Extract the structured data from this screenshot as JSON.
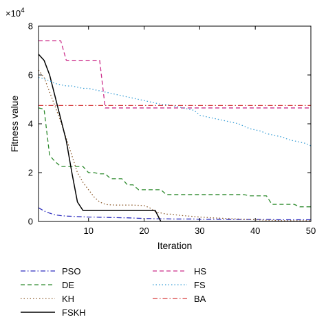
{
  "chart_data": {
    "type": "line",
    "xlabel": "Iteration",
    "ylabel": "Fitness value",
    "multiplier_base": "×10",
    "multiplier_exp": "4",
    "xlim": [
      1,
      50
    ],
    "ylim": [
      0,
      80000
    ],
    "x_ticks": [
      10,
      20,
      30,
      40,
      50
    ],
    "y_ticks": [
      0,
      20000,
      40000,
      60000,
      80000
    ],
    "y_tick_labels": [
      "0",
      "2",
      "4",
      "6",
      "8"
    ],
    "grid": false,
    "legend_position": "below",
    "series": [
      {
        "name": "PSO",
        "color": "#2e2ebf",
        "dash": "dashdot",
        "x": [
          1,
          2,
          3,
          4,
          5,
          6,
          7,
          8,
          9,
          10,
          11,
          12,
          13,
          14,
          15,
          16,
          17,
          18,
          19,
          20,
          21,
          22,
          23,
          24,
          25,
          26,
          27,
          28,
          29,
          30,
          31,
          32,
          33,
          34,
          35,
          36,
          37,
          38,
          39,
          40,
          41,
          42,
          43,
          44,
          45,
          46,
          47,
          48,
          49,
          50
        ],
        "y": [
          5600,
          4300,
          3400,
          2700,
          2400,
          2200,
          2100,
          2000,
          1900,
          1800,
          1800,
          1700,
          1700,
          1600,
          1600,
          1500,
          1500,
          1400,
          1300,
          1200,
          1200,
          1100,
          1100,
          1100,
          1000,
          1000,
          1000,
          1000,
          1000,
          900,
          900,
          900,
          900,
          900,
          800,
          800,
          800,
          800,
          800,
          800,
          800,
          800,
          800,
          700,
          700,
          700,
          700,
          700,
          700,
          700
        ]
      },
      {
        "name": "DE",
        "color": "#2e8b2e",
        "dash": "dashed",
        "x": [
          1,
          2,
          3,
          4,
          5,
          6,
          7,
          8,
          9,
          10,
          11,
          12,
          13,
          14,
          15,
          16,
          17,
          18,
          19,
          20,
          21,
          22,
          23,
          24,
          25,
          26,
          27,
          28,
          29,
          30,
          31,
          32,
          33,
          34,
          35,
          36,
          37,
          38,
          39,
          40,
          41,
          42,
          43,
          44,
          45,
          46,
          47,
          48,
          49,
          50
        ],
        "y": [
          46500,
          46000,
          27000,
          24500,
          22500,
          22500,
          22500,
          22500,
          22500,
          20000,
          20000,
          19500,
          19500,
          17500,
          17500,
          17500,
          15000,
          15000,
          13000,
          13000,
          13000,
          13000,
          13000,
          11000,
          11000,
          11000,
          11000,
          11000,
          11000,
          11000,
          11000,
          11000,
          11000,
          11000,
          11000,
          11000,
          11000,
          11000,
          10500,
          10500,
          10500,
          10500,
          7000,
          7000,
          7000,
          7000,
          7000,
          6000,
          6000,
          6000
        ]
      },
      {
        "name": "KH",
        "color": "#8b5a2b",
        "dash": "dotted",
        "x": [
          1,
          2,
          3,
          4,
          5,
          6,
          7,
          8,
          9,
          10,
          11,
          12,
          13,
          14,
          15,
          16,
          17,
          18,
          19,
          20,
          21,
          22,
          23,
          24,
          25,
          26,
          27,
          28,
          29,
          30,
          31,
          32,
          33,
          34,
          35,
          36,
          37,
          38,
          39,
          40,
          41,
          42,
          43,
          44,
          45,
          46,
          47,
          48,
          49,
          50
        ],
        "y": [
          62000,
          59000,
          53000,
          47000,
          41000,
          34000,
          27000,
          20000,
          16000,
          13000,
          10000,
          8000,
          7000,
          6800,
          6700,
          6700,
          6700,
          6700,
          6600,
          6500,
          5600,
          4000,
          3500,
          3000,
          3000,
          2600,
          2400,
          2200,
          2000,
          1800,
          1700,
          1500,
          1400,
          1300,
          1200,
          1100,
          1000,
          900,
          800,
          700,
          600,
          500,
          500,
          400,
          300,
          300,
          300,
          300,
          300,
          300
        ]
      },
      {
        "name": "FSKH",
        "color": "#000000",
        "dash": "solid",
        "x": [
          1,
          2,
          3,
          4,
          5,
          6,
          7,
          8,
          9,
          10,
          11,
          12,
          13,
          14,
          15,
          16,
          17,
          18,
          19,
          20,
          21,
          22,
          23,
          24,
          25,
          26,
          27,
          28,
          29,
          30,
          31,
          32,
          33,
          34,
          35,
          36,
          37,
          38,
          39,
          40,
          41,
          42,
          43,
          44,
          45,
          46,
          47,
          48,
          49,
          50
        ],
        "y": [
          68500,
          66000,
          60000,
          51000,
          42000,
          33000,
          20000,
          8000,
          4500,
          4500,
          4500,
          4500,
          4500,
          4500,
          4500,
          4500,
          4500,
          4500,
          4500,
          4500,
          4500,
          4500,
          0,
          0,
          0,
          0,
          0,
          0,
          0,
          0,
          0,
          0,
          0,
          0,
          0,
          0,
          0,
          0,
          0,
          0,
          0,
          0,
          0,
          0,
          0,
          0,
          0,
          0,
          0,
          0
        ]
      },
      {
        "name": "HS",
        "color": "#cc2e8b",
        "dash": "dashed",
        "x": [
          1,
          2,
          3,
          4,
          5,
          6,
          7,
          8,
          9,
          10,
          11,
          12,
          13,
          14,
          15,
          16,
          17,
          18,
          19,
          20,
          21,
          22,
          23,
          24,
          25,
          26,
          27,
          28,
          29,
          30,
          31,
          32,
          33,
          34,
          35,
          36,
          37,
          38,
          39,
          40,
          41,
          42,
          43,
          44,
          45,
          46,
          47,
          48,
          49,
          50
        ],
        "y": [
          74000,
          74000,
          74000,
          74000,
          74000,
          66000,
          66000,
          66000,
          66000,
          66000,
          66000,
          66000,
          46500,
          46500,
          46500,
          46500,
          46500,
          46500,
          46500,
          46500,
          46500,
          46500,
          46500,
          46500,
          46500,
          46500,
          46500,
          46500,
          46500,
          46500,
          46500,
          46500,
          46500,
          46500,
          46500,
          46500,
          46500,
          46500,
          46500,
          46500,
          46500,
          46500,
          46500,
          46500,
          46500,
          46500,
          46500,
          46500,
          46500,
          46500
        ]
      },
      {
        "name": "FS",
        "color": "#3a9fd6",
        "dash": "dotted",
        "x": [
          1,
          2,
          3,
          4,
          5,
          6,
          7,
          8,
          9,
          10,
          11,
          12,
          13,
          14,
          15,
          16,
          17,
          18,
          19,
          20,
          21,
          22,
          23,
          24,
          25,
          26,
          27,
          28,
          29,
          30,
          31,
          32,
          33,
          34,
          35,
          36,
          37,
          38,
          39,
          40,
          41,
          42,
          43,
          44,
          45,
          46,
          47,
          48,
          49,
          50
        ],
        "y": [
          59000,
          58500,
          57500,
          56500,
          56000,
          55500,
          55500,
          55000,
          54500,
          54500,
          54000,
          53500,
          53000,
          52500,
          52000,
          51500,
          51000,
          50500,
          50000,
          49500,
          49000,
          48500,
          48000,
          48000,
          47500,
          47000,
          46500,
          46000,
          45500,
          43500,
          43000,
          42500,
          42000,
          41500,
          41000,
          40500,
          40000,
          39000,
          38000,
          37500,
          37000,
          36000,
          35500,
          35000,
          34500,
          33500,
          33000,
          32500,
          32000,
          31000
        ]
      },
      {
        "name": "BA",
        "color": "#d63a3a",
        "dash": "dashdot",
        "x": [
          1,
          50
        ],
        "y": [
          47500,
          47500
        ]
      }
    ]
  }
}
